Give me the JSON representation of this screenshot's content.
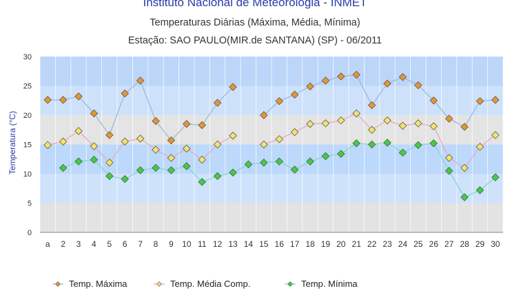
{
  "header": {
    "title": "Instituto Nacional de Meteorologia - INMET",
    "subtitle": "Temperaturas Diárias (Máxima, Média, Mínima)",
    "station": "Estação: SAO PAULO(MIR.de SANTANA) (SP)  -  06/2011"
  },
  "chart_data": {
    "type": "line",
    "ylabel": "Temperatura (°C)",
    "xlabel": "",
    "ylim": [
      0,
      30
    ],
    "yticks": [
      0,
      5,
      10,
      15,
      20,
      25,
      30
    ],
    "categories": [
      "a",
      "2",
      "3",
      "4",
      "5",
      "6",
      "7",
      "8",
      "9",
      "10",
      "11",
      "12",
      "13",
      "14",
      "15",
      "16",
      "17",
      "18",
      "19",
      "20",
      "21",
      "22",
      "23",
      "24",
      "25",
      "26",
      "27",
      "28",
      "29",
      "30"
    ],
    "grid": true,
    "legend_position": "bottom",
    "series": [
      {
        "name": "Temp. Máxima",
        "color": "#e8962e",
        "line": "#9bb9d9",
        "values": [
          22.6,
          22.6,
          23.2,
          20.3,
          16.6,
          23.7,
          25.9,
          19.0,
          15.7,
          18.5,
          18.3,
          22.1,
          24.8,
          null,
          20.0,
          22.4,
          23.5,
          24.9,
          25.9,
          26.6,
          26.9,
          21.7,
          25.4,
          26.5,
          25.1,
          22.5,
          19.4,
          18.0,
          22.4,
          22.6
        ]
      },
      {
        "name": "Temp. Média Comp.",
        "color": "#f3e36a",
        "line": "#e6a8c6",
        "values": [
          14.9,
          15.5,
          17.3,
          14.7,
          11.9,
          15.5,
          16.0,
          14.1,
          12.7,
          14.3,
          12.4,
          15.0,
          16.5,
          null,
          15.0,
          15.9,
          17.1,
          18.5,
          18.6,
          19.1,
          20.3,
          17.5,
          19.1,
          18.2,
          18.6,
          18.1,
          12.7,
          11.0,
          14.6,
          16.6
        ]
      },
      {
        "name": "Temp. Mínima",
        "color": "#3fcf3f",
        "line": "#7fd9c9",
        "values": [
          null,
          11.0,
          12.1,
          12.4,
          9.6,
          9.1,
          10.6,
          11.0,
          10.6,
          11.3,
          8.6,
          9.6,
          10.2,
          11.6,
          11.9,
          12.1,
          10.7,
          12.1,
          13.0,
          13.4,
          15.2,
          15.0,
          15.3,
          13.6,
          14.9,
          15.2,
          10.5,
          6.0,
          7.2,
          9.4
        ]
      }
    ]
  }
}
